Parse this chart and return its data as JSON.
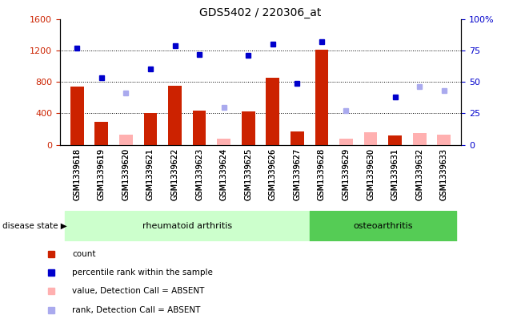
{
  "title": "GDS5402 / 220306_at",
  "samples": [
    "GSM1339618",
    "GSM1339619",
    "GSM1339620",
    "GSM1339621",
    "GSM1339622",
    "GSM1339623",
    "GSM1339624",
    "GSM1339625",
    "GSM1339626",
    "GSM1339627",
    "GSM1339628",
    "GSM1339629",
    "GSM1339630",
    "GSM1339631",
    "GSM1339632",
    "GSM1339633"
  ],
  "counts": [
    740,
    290,
    null,
    400,
    755,
    440,
    null,
    430,
    850,
    175,
    1210,
    null,
    null,
    120,
    null,
    null
  ],
  "absent_counts": [
    null,
    null,
    130,
    null,
    null,
    null,
    75,
    null,
    null,
    null,
    null,
    75,
    160,
    null,
    155,
    130
  ],
  "percentile_ranks": [
    77,
    53,
    null,
    60,
    79,
    72,
    null,
    71,
    80,
    49,
    82,
    null,
    null,
    38,
    null,
    null
  ],
  "absent_ranks": [
    null,
    null,
    41,
    null,
    null,
    null,
    30,
    null,
    null,
    null,
    null,
    27,
    null,
    null,
    46,
    43
  ],
  "rheumatoid_count": 10,
  "osteoarthritis_count": 6,
  "ylim_left": [
    0,
    1600
  ],
  "ylim_right": [
    0,
    100
  ],
  "yticks_left": [
    0,
    400,
    800,
    1200,
    1600
  ],
  "yticks_right": [
    0,
    25,
    50,
    75,
    100
  ],
  "bar_color": "#cc2200",
  "absent_bar_color": "#ffb0b0",
  "dot_color": "#0000cc",
  "absent_dot_color": "#aaaaee",
  "rh_bg": "#ccffcc",
  "oa_bg": "#55cc55",
  "label_bg": "#cccccc",
  "legend_items": [
    {
      "label": "count",
      "color": "#cc2200",
      "marker": "s"
    },
    {
      "label": "percentile rank within the sample",
      "color": "#0000cc",
      "marker": "s"
    },
    {
      "label": "value, Detection Call = ABSENT",
      "color": "#ffb0b0",
      "marker": "s"
    },
    {
      "label": "rank, Detection Call = ABSENT",
      "color": "#aaaaee",
      "marker": "s"
    }
  ]
}
